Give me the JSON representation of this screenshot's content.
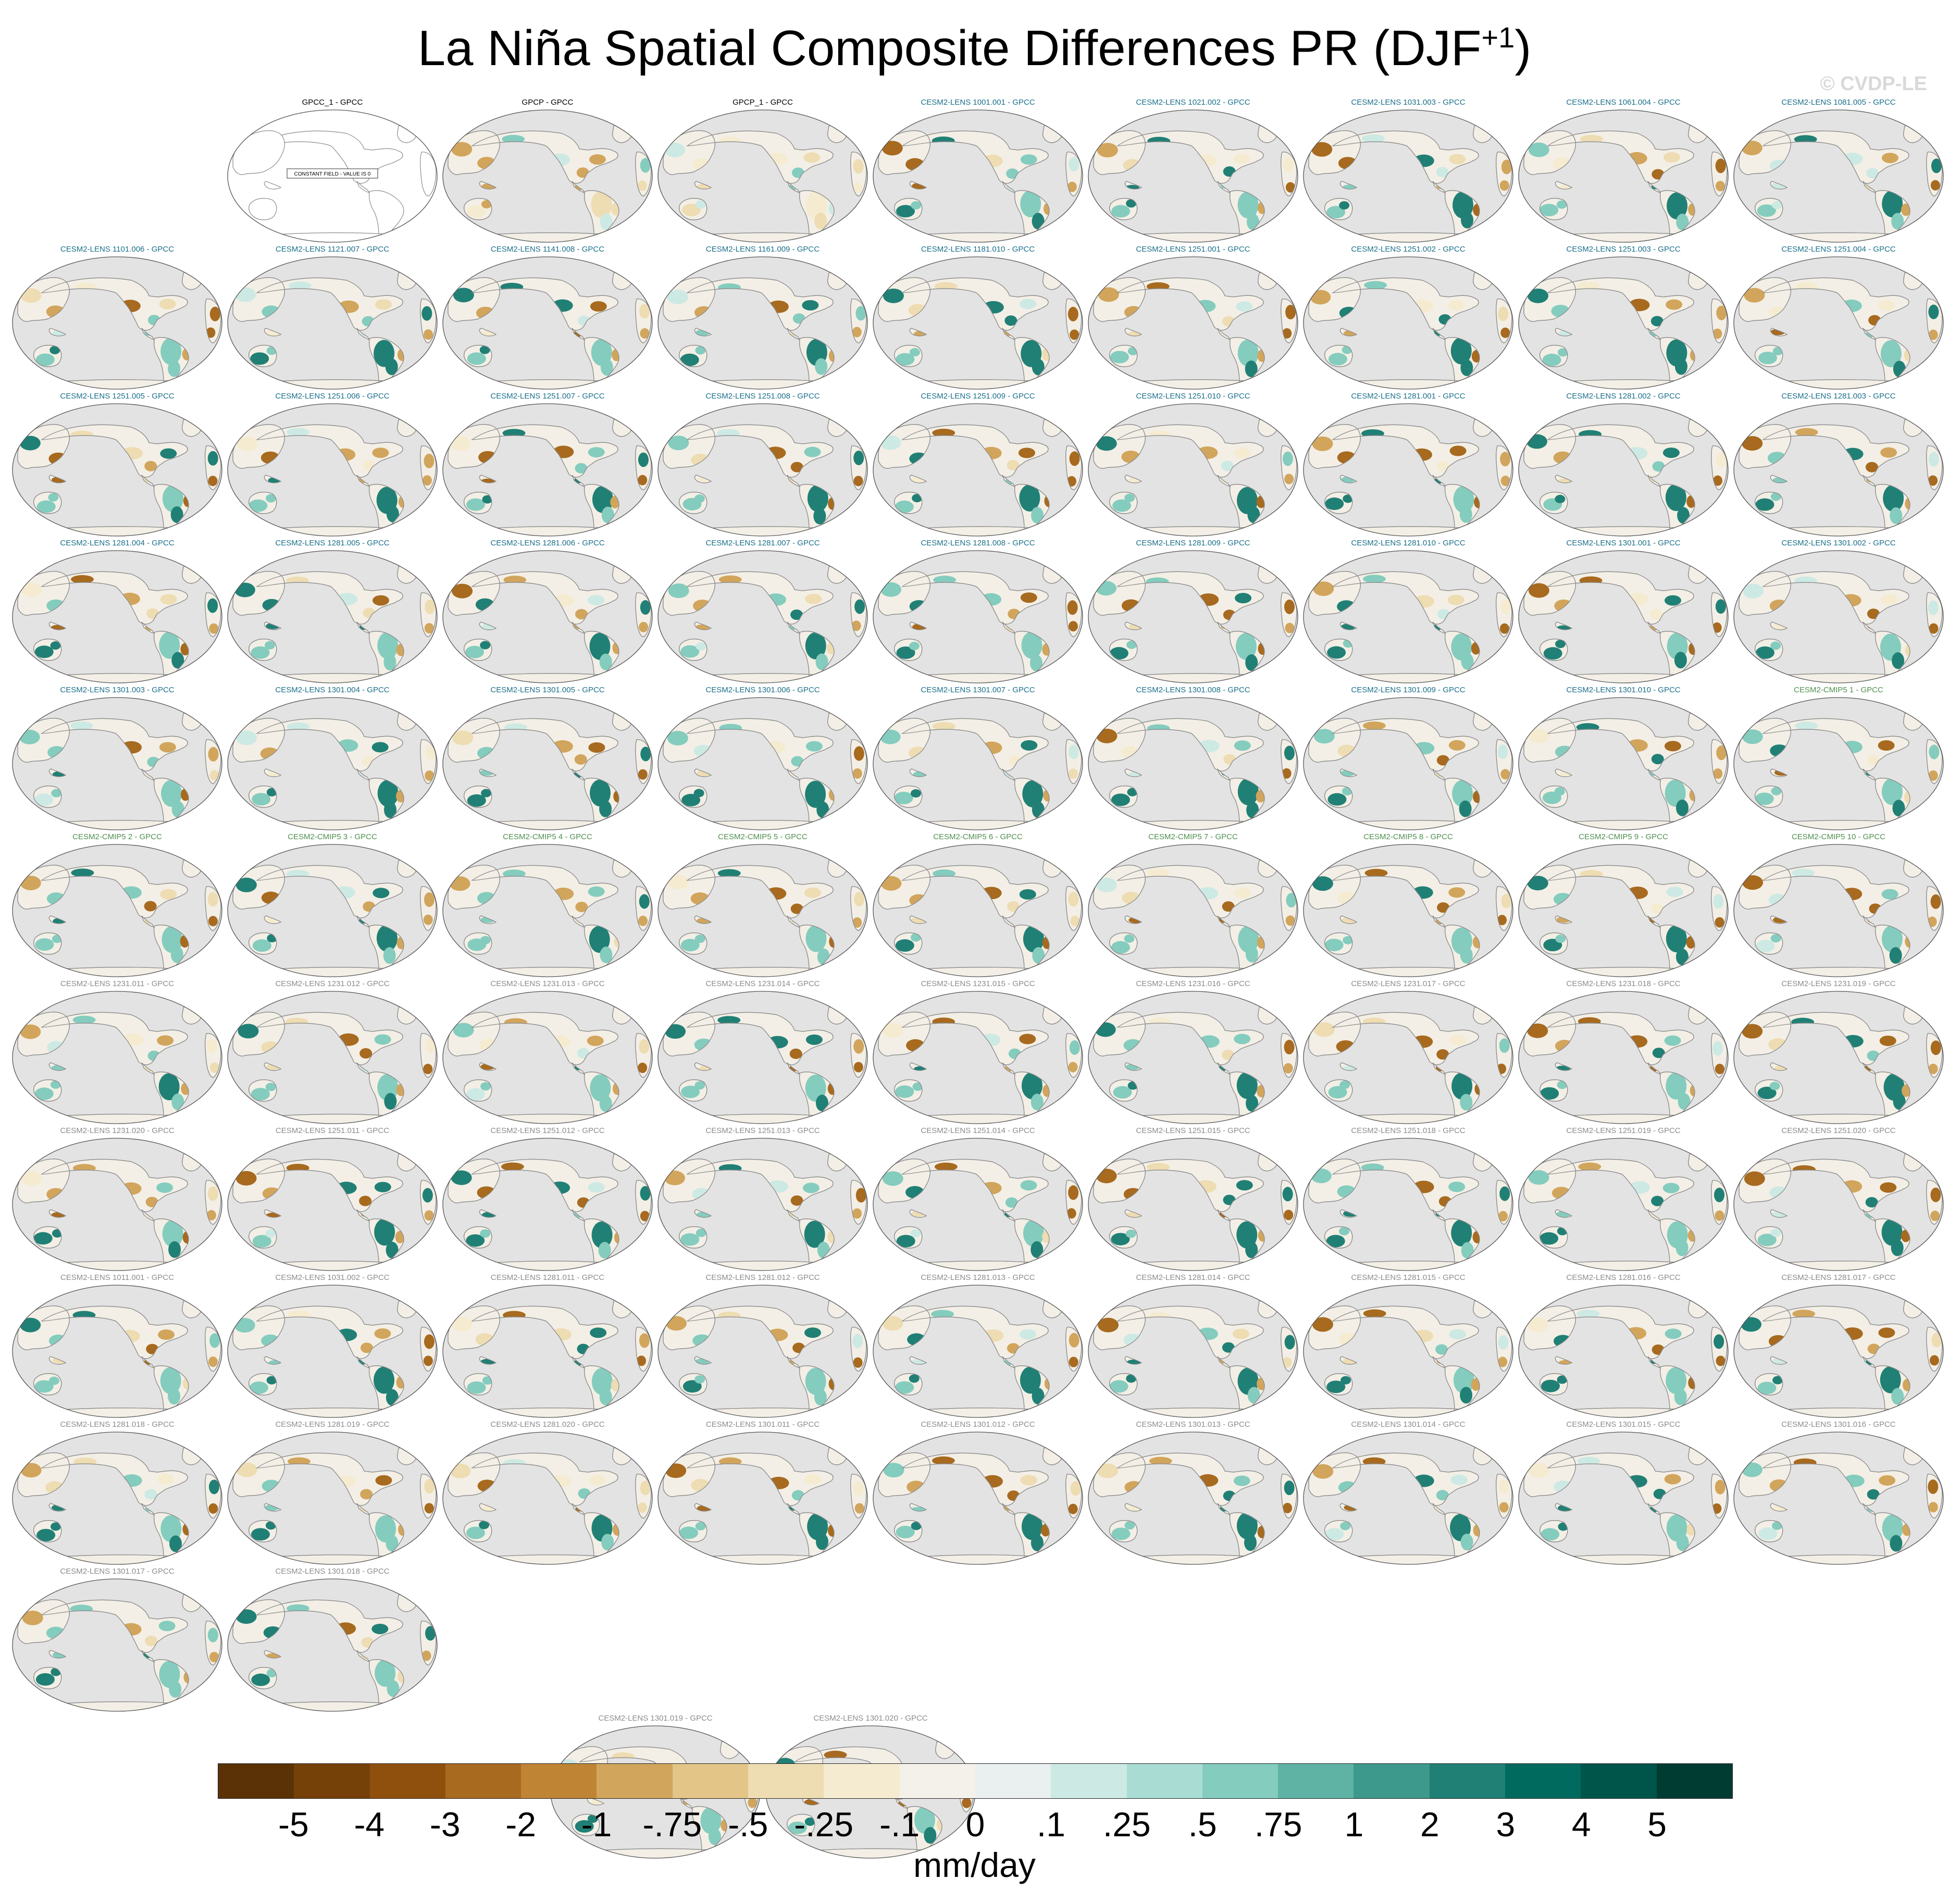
{
  "figure": {
    "title_main": "La Niña Spatial Composite Differences PR (DJF",
    "title_sup": "+1",
    "title_end": ")",
    "watermark": "© CVDP-LE",
    "colors": {
      "land_neutral": "#f3efe6",
      "ocean": "#e3e3e3",
      "coast": "#8c8c8c",
      "title_obs": "#000000",
      "title_cesm2_lens": "#1a6f8a",
      "title_cesm2_cmip5": "#4f8f4f",
      "title_cesm2_lens_b": "#8c8c8c"
    }
  },
  "panels": [
    {
      "label": "GPCC_1 - GPCC",
      "group": "obs",
      "note": "CONSTANT FIELD - VALUE IS 0",
      "style": "blank"
    },
    {
      "label": "GPCP - GPCC",
      "group": "obs",
      "style": "obs"
    },
    {
      "label": "GPCP_1 - GPCC",
      "group": "obs",
      "style": "obs"
    },
    {
      "label": "CESM2-LENS 1001.001 - GPCC",
      "group": "lens"
    },
    {
      "label": "CESM2-LENS 1021.002 - GPCC",
      "group": "lens"
    },
    {
      "label": "CESM2-LENS 1031.003 - GPCC",
      "group": "lens"
    },
    {
      "label": "CESM2-LENS 1061.004 - GPCC",
      "group": "lens"
    },
    {
      "label": "CESM2-LENS 1081.005 - GPCC",
      "group": "lens"
    },
    {
      "label": "CESM2-LENS 1101.006 - GPCC",
      "group": "lens"
    },
    {
      "label": "CESM2-LENS 1121.007 - GPCC",
      "group": "lens"
    },
    {
      "label": "CESM2-LENS 1141.008 - GPCC",
      "group": "lens"
    },
    {
      "label": "CESM2-LENS 1161.009 - GPCC",
      "group": "lens"
    },
    {
      "label": "CESM2-LENS 1181.010 - GPCC",
      "group": "lens"
    },
    {
      "label": "CESM2-LENS 1251.001 - GPCC",
      "group": "lens"
    },
    {
      "label": "CESM2-LENS 1251.002 - GPCC",
      "group": "lens"
    },
    {
      "label": "CESM2-LENS 1251.003 - GPCC",
      "group": "lens"
    },
    {
      "label": "CESM2-LENS 1251.004 - GPCC",
      "group": "lens"
    },
    {
      "label": "CESM2-LENS 1251.005 - GPCC",
      "group": "lens"
    },
    {
      "label": "CESM2-LENS 1251.006 - GPCC",
      "group": "lens"
    },
    {
      "label": "CESM2-LENS 1251.007 - GPCC",
      "group": "lens"
    },
    {
      "label": "CESM2-LENS 1251.008 - GPCC",
      "group": "lens"
    },
    {
      "label": "CESM2-LENS 1251.009 - GPCC",
      "group": "lens"
    },
    {
      "label": "CESM2-LENS 1251.010 - GPCC",
      "group": "lens"
    },
    {
      "label": "CESM2-LENS 1281.001 - GPCC",
      "group": "lens"
    },
    {
      "label": "CESM2-LENS 1281.002 - GPCC",
      "group": "lens"
    },
    {
      "label": "CESM2-LENS 1281.003 - GPCC",
      "group": "lens"
    },
    {
      "label": "CESM2-LENS 1281.004 - GPCC",
      "group": "lens"
    },
    {
      "label": "CESM2-LENS 1281.005 - GPCC",
      "group": "lens"
    },
    {
      "label": "CESM2-LENS 1281.006 - GPCC",
      "group": "lens"
    },
    {
      "label": "CESM2-LENS 1281.007 - GPCC",
      "group": "lens"
    },
    {
      "label": "CESM2-LENS 1281.008 - GPCC",
      "group": "lens"
    },
    {
      "label": "CESM2-LENS 1281.009 - GPCC",
      "group": "lens"
    },
    {
      "label": "CESM2-LENS 1281.010 - GPCC",
      "group": "lens"
    },
    {
      "label": "CESM2-LENS 1301.001 - GPCC",
      "group": "lens"
    },
    {
      "label": "CESM2-LENS 1301.002 - GPCC",
      "group": "lens"
    },
    {
      "label": "CESM2-LENS 1301.003 - GPCC",
      "group": "lens"
    },
    {
      "label": "CESM2-LENS 1301.004 - GPCC",
      "group": "lens"
    },
    {
      "label": "CESM2-LENS 1301.005 - GPCC",
      "group": "lens"
    },
    {
      "label": "CESM2-LENS 1301.006 - GPCC",
      "group": "lens"
    },
    {
      "label": "CESM2-LENS 1301.007 - GPCC",
      "group": "lens"
    },
    {
      "label": "CESM2-LENS 1301.008 - GPCC",
      "group": "lens"
    },
    {
      "label": "CESM2-LENS 1301.009 - GPCC",
      "group": "lens"
    },
    {
      "label": "CESM2-LENS 1301.010 - GPCC",
      "group": "lens"
    },
    {
      "label": "CESM2-CMIP5 1 - GPCC",
      "group": "cmip5"
    },
    {
      "label": "CESM2-CMIP5 2 - GPCC",
      "group": "cmip5"
    },
    {
      "label": "CESM2-CMIP5 3 - GPCC",
      "group": "cmip5"
    },
    {
      "label": "CESM2-CMIP5 4 - GPCC",
      "group": "cmip5"
    },
    {
      "label": "CESM2-CMIP5 5 - GPCC",
      "group": "cmip5"
    },
    {
      "label": "CESM2-CMIP5 6 - GPCC",
      "group": "cmip5"
    },
    {
      "label": "CESM2-CMIP5 7 - GPCC",
      "group": "cmip5"
    },
    {
      "label": "CESM2-CMIP5 8 - GPCC",
      "group": "cmip5"
    },
    {
      "label": "CESM2-CMIP5 9 - GPCC",
      "group": "cmip5"
    },
    {
      "label": "CESM2-CMIP5 10 - GPCC",
      "group": "cmip5"
    },
    {
      "label": "CESM2-LENS 1231.011 - GPCC",
      "group": "lens2"
    },
    {
      "label": "CESM2-LENS 1231.012 - GPCC",
      "group": "lens2"
    },
    {
      "label": "CESM2-LENS 1231.013 - GPCC",
      "group": "lens2"
    },
    {
      "label": "CESM2-LENS 1231.014 - GPCC",
      "group": "lens2"
    },
    {
      "label": "CESM2-LENS 1231.015 - GPCC",
      "group": "lens2"
    },
    {
      "label": "CESM2-LENS 1231.016 - GPCC",
      "group": "lens2"
    },
    {
      "label": "CESM2-LENS 1231.017 - GPCC",
      "group": "lens2"
    },
    {
      "label": "CESM2-LENS 1231.018 - GPCC",
      "group": "lens2"
    },
    {
      "label": "CESM2-LENS 1231.019 - GPCC",
      "group": "lens2"
    },
    {
      "label": "CESM2-LENS 1231.020 - GPCC",
      "group": "lens2"
    },
    {
      "label": "CESM2-LENS 1251.011 - GPCC",
      "group": "lens2"
    },
    {
      "label": "CESM2-LENS 1251.012 - GPCC",
      "group": "lens2"
    },
    {
      "label": "CESM2-LENS 1251.013 - GPCC",
      "group": "lens2"
    },
    {
      "label": "CESM2-LENS 1251.014 - GPCC",
      "group": "lens2"
    },
    {
      "label": "CESM2-LENS 1251.015 - GPCC",
      "group": "lens2"
    },
    {
      "label": "CESM2-LENS 1251.018 - GPCC",
      "group": "lens2"
    },
    {
      "label": "CESM2-LENS 1251.019 - GPCC",
      "group": "lens2"
    },
    {
      "label": "CESM2-LENS 1251.020 - GPCC",
      "group": "lens2"
    },
    {
      "label": "CESM2-LENS 1011.001 - GPCC",
      "group": "lens2"
    },
    {
      "label": "CESM2-LENS 1031.002 - GPCC",
      "group": "lens2"
    },
    {
      "label": "CESM2-LENS 1281.011 - GPCC",
      "group": "lens2"
    },
    {
      "label": "CESM2-LENS 1281.012 - GPCC",
      "group": "lens2"
    },
    {
      "label": "CESM2-LENS 1281.013 - GPCC",
      "group": "lens2"
    },
    {
      "label": "CESM2-LENS 1281.014 - GPCC",
      "group": "lens2"
    },
    {
      "label": "CESM2-LENS 1281.015 - GPCC",
      "group": "lens2"
    },
    {
      "label": "CESM2-LENS 1281.016 - GPCC",
      "group": "lens2"
    },
    {
      "label": "CESM2-LENS 1281.017 - GPCC",
      "group": "lens2"
    },
    {
      "label": "CESM2-LENS 1281.018 - GPCC",
      "group": "lens2"
    },
    {
      "label": "CESM2-LENS 1281.019 - GPCC",
      "group": "lens2"
    },
    {
      "label": "CESM2-LENS 1281.020 - GPCC",
      "group": "lens2"
    },
    {
      "label": "CESM2-LENS 1301.011 - GPCC",
      "group": "lens2"
    },
    {
      "label": "CESM2-LENS 1301.012 - GPCC",
      "group": "lens2"
    },
    {
      "label": "CESM2-LENS 1301.013 - GPCC",
      "group": "lens2"
    },
    {
      "label": "CESM2-LENS 1301.014 - GPCC",
      "group": "lens2"
    },
    {
      "label": "CESM2-LENS 1301.015 - GPCC",
      "group": "lens2"
    },
    {
      "label": "CESM2-LENS 1301.016 - GPCC",
      "group": "lens2"
    },
    {
      "label": "CESM2-LENS 1301.017 - GPCC",
      "group": "lens2"
    },
    {
      "label": "CESM2-LENS 1301.018 - GPCC",
      "group": "lens2"
    },
    {
      "label": "CESM2-LENS 1301.019 - GPCC",
      "group": "lens2"
    },
    {
      "label": "CESM2-LENS 1301.020 - GPCC",
      "group": "lens2"
    }
  ],
  "colorbar": {
    "labels": [
      "-5",
      "-4",
      "-3",
      "-2",
      "-1",
      "-.75",
      "-.5",
      "-.25",
      "-.1",
      "0",
      ".1",
      ".25",
      ".5",
      ".75",
      "1",
      "2",
      "3",
      "4",
      "5"
    ],
    "colors": [
      "#5a3205",
      "#764009",
      "#8f4f0d",
      "#a76a1f",
      "#bf8534",
      "#d2a55c",
      "#e2c587",
      "#eedcb2",
      "#f5ebd0",
      "#f4f0ea",
      "#e9f0ef",
      "#cde9e4",
      "#a9ddd3",
      "#84ccbe",
      "#5eb3a4",
      "#3d998b",
      "#218075",
      "#006a5f",
      "#00554b",
      "#003c32"
    ],
    "units": "mm/day"
  }
}
